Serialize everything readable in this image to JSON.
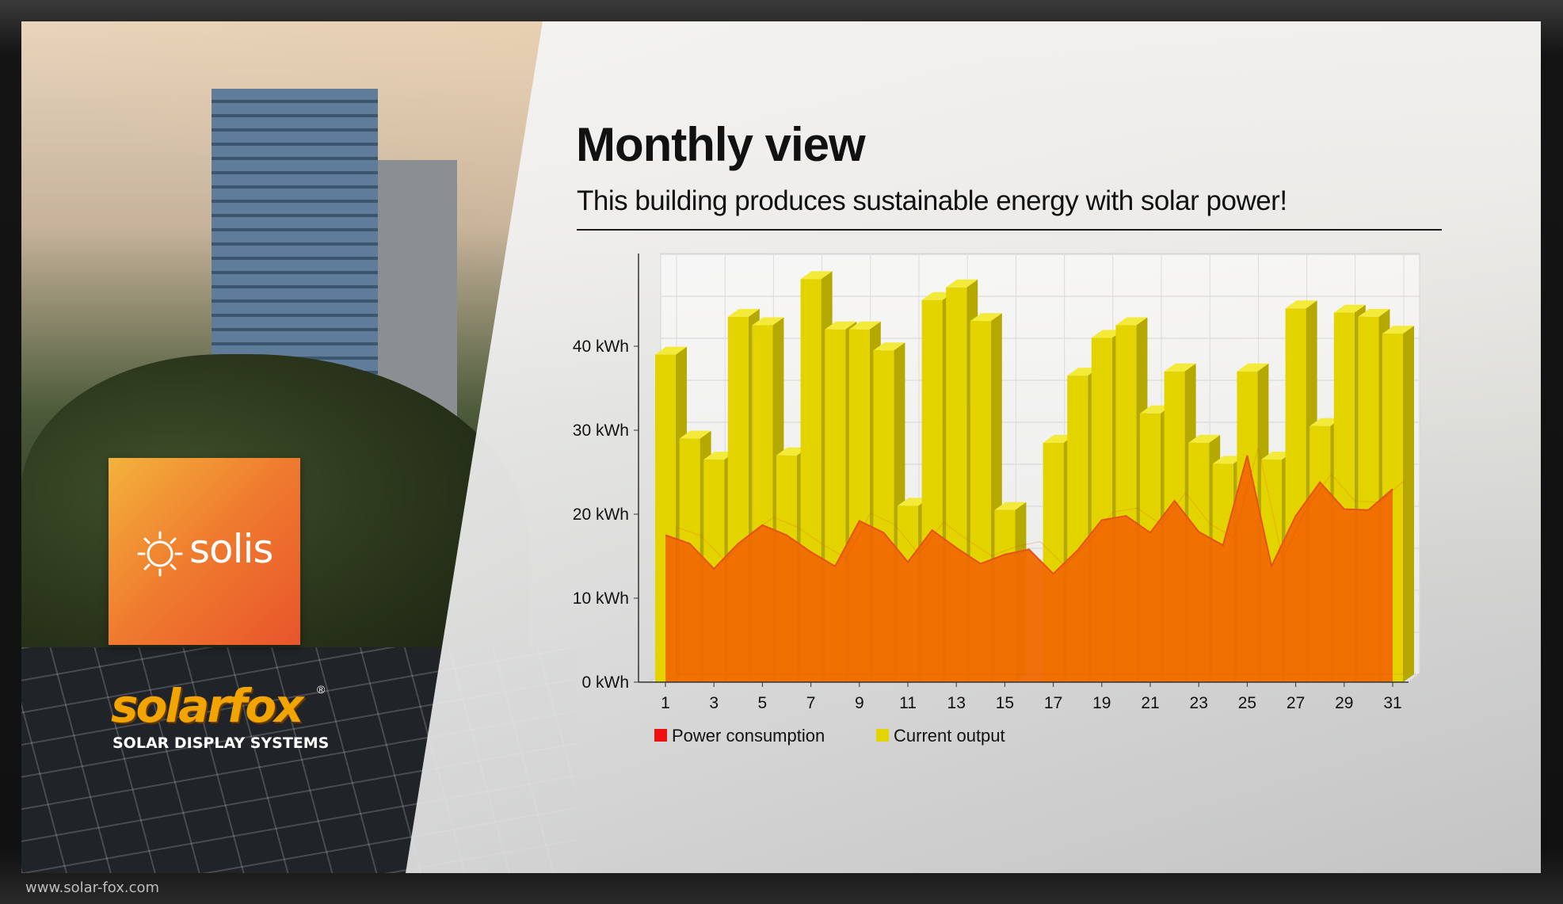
{
  "page": {
    "title": "Monthly view",
    "subtitle": "This building produces sustainable energy with solar power!",
    "url": "www.solar-fox.com"
  },
  "logos": {
    "solis": "solis",
    "solarfox_name": "solarfox",
    "solarfox_registered": "®",
    "solarfox_tagline": "SOLAR DISPLAY SYSTEMS"
  },
  "colors": {
    "current_output": "#e3d400",
    "power_consumption": "#f06a00",
    "consumption_legend": "#ee1111",
    "accent_orange": "#ef7a2e"
  },
  "chart_data": {
    "type": "bar",
    "title": "Monthly view",
    "xlabel": "",
    "ylabel": "",
    "unit": "kWh",
    "ylim": [
      0,
      50
    ],
    "yticks": [
      0,
      10,
      20,
      30,
      40
    ],
    "ytick_labels": [
      "0 kWh",
      "10 kWh",
      "20 kWh",
      "30 kWh",
      "40 kWh"
    ],
    "categories": [
      1,
      2,
      3,
      4,
      5,
      6,
      7,
      8,
      9,
      10,
      11,
      12,
      13,
      14,
      15,
      16,
      17,
      18,
      19,
      20,
      21,
      22,
      23,
      24,
      25,
      26,
      27,
      28,
      29,
      30,
      31
    ],
    "xtick_labels": [
      "1",
      "3",
      "5",
      "7",
      "9",
      "11",
      "13",
      "15",
      "17",
      "19",
      "21",
      "23",
      "25",
      "27",
      "29",
      "31"
    ],
    "grid": true,
    "legend_position": "bottom-left",
    "series": [
      {
        "name": "Current output",
        "type": "bar",
        "values": [
          39,
          29,
          26.5,
          43.5,
          42.5,
          27,
          48,
          42,
          42,
          39.5,
          21,
          45.5,
          47,
          43,
          20.5,
          0,
          28.5,
          36.5,
          41,
          42.5,
          32,
          37,
          28.5,
          26,
          37,
          26.5,
          44.5,
          30.5,
          44,
          43.5,
          41.5
        ]
      },
      {
        "name": "Power consumption",
        "type": "area",
        "values": [
          17.5,
          16.5,
          13.5,
          16.5,
          18.7,
          17.5,
          15.5,
          13.8,
          19.2,
          17.8,
          14.3,
          18.1,
          16,
          14.1,
          15.2,
          15.8,
          12.9,
          15.7,
          19.3,
          19.8,
          17.8,
          21.6,
          17.9,
          16.3,
          27,
          13.8,
          19.8,
          23.8,
          20.6,
          20.5,
          23
        ]
      }
    ]
  }
}
